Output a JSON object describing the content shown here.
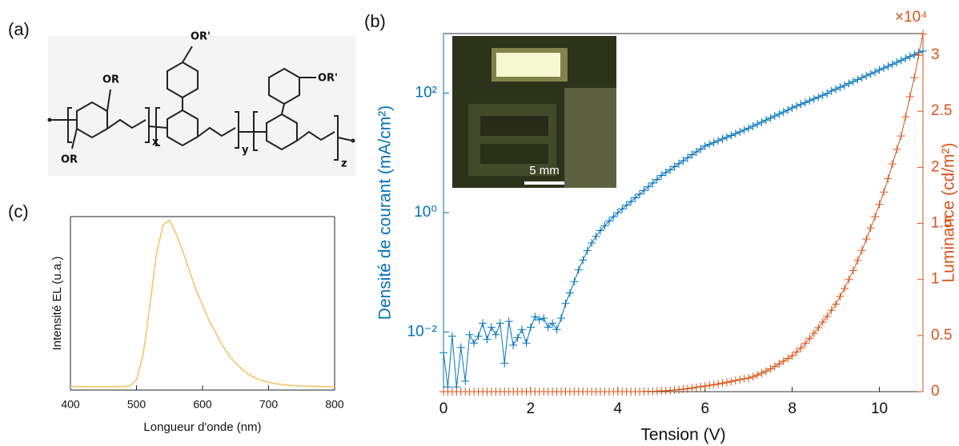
{
  "structure": {
    "label": "(a)",
    "groups": [
      "OR",
      "OR",
      "OR'",
      "OR'"
    ],
    "subscripts": [
      "x",
      "y",
      "z"
    ]
  },
  "chart_data": [
    {
      "type": "line",
      "title": "(b)",
      "xlabel": "Tension (V)",
      "ylabel": "Densité de courant (mA/cm²)",
      "y2label": "Luminance (cd/m²)",
      "y2_multiplier": "×10⁴",
      "annotation": "5 mm",
      "x": [
        0,
        0.1,
        0.2,
        0.3,
        0.4,
        0.5,
        0.6,
        0.7,
        0.8,
        0.9,
        1,
        1.1,
        1.2,
        1.3,
        1.4,
        1.5,
        1.6,
        1.7,
        1.8,
        1.9,
        2,
        2.1,
        2.2,
        2.3,
        2.4,
        2.5,
        2.6,
        2.7,
        2.8,
        2.9,
        3,
        3.1,
        3.2,
        3.3,
        3.4,
        3.5,
        3.6,
        3.7,
        3.8,
        3.9,
        4,
        4.1,
        4.2,
        4.3,
        4.4,
        4.5,
        4.6,
        4.7,
        4.8,
        4.9,
        5,
        5.1,
        5.2,
        5.3,
        5.4,
        5.5,
        5.6,
        5.7,
        5.8,
        5.9,
        6,
        6.1,
        6.2,
        6.3,
        6.4,
        6.5,
        6.6,
        6.7,
        6.8,
        6.9,
        7,
        7.1,
        7.2,
        7.3,
        7.4,
        7.5,
        7.6,
        7.7,
        7.8,
        7.9,
        8,
        8.1,
        8.2,
        8.3,
        8.4,
        8.5,
        8.6,
        8.7,
        8.8,
        8.9,
        9,
        9.1,
        9.2,
        9.3,
        9.4,
        9.5,
        9.6,
        9.7,
        9.8,
        9.9,
        10,
        10.1,
        10.2,
        10.3,
        10.4,
        10.5,
        10.6,
        10.7,
        10.8,
        10.9,
        11
      ],
      "xlim": [
        0,
        11
      ],
      "xticks": [
        0,
        2,
        4,
        6,
        8,
        10
      ],
      "yscale": "log",
      "ylim": [
        0.001,
        1000
      ],
      "yticks": [
        {
          "value": 0.01,
          "label": "10⁻²"
        },
        {
          "value": 1,
          "label": "10⁰"
        },
        {
          "value": 100,
          "label": "10²"
        }
      ],
      "y2lim": [
        0,
        31930
      ],
      "y2ticks": [
        0,
        {
          "value": 5000,
          "label": "0.5"
        },
        {
          "value": 10000,
          "label": "1"
        },
        {
          "value": 15000,
          "label": "1.5"
        },
        {
          "value": 20000,
          "label": "2"
        },
        {
          "value": 25000,
          "label": "2.5"
        },
        {
          "value": 30000,
          "label": "3"
        }
      ],
      "series": [
        {
          "color": "#0072bd",
          "axis": "y",
          "values": [
            0.0045,
            0.0012,
            0.0085,
            0.0012,
            0.0055,
            0.0015,
            0.009,
            0.0065,
            0.0085,
            0.014,
            0.0075,
            0.012,
            0.009,
            0.014,
            0.003,
            0.015,
            0.006,
            0.008,
            0.011,
            0.0065,
            0.012,
            0.018,
            0.016,
            0.017,
            0.012,
            0.014,
            0.011,
            0.017,
            0.03,
            0.045,
            0.07,
            0.11,
            0.16,
            0.23,
            0.31,
            0.4,
            0.5,
            0.6,
            0.72,
            0.85,
            1.0,
            1.15,
            1.33,
            1.53,
            1.77,
            2.04,
            2.35,
            2.71,
            3.13,
            3.6,
            4.2,
            4.7,
            5.2,
            5.9,
            6.6,
            7.4,
            8.3,
            9.3,
            10.4,
            11.6,
            13,
            13.9,
            14.9,
            16,
            17.1,
            18.3,
            19.6,
            21,
            22.5,
            24.2,
            26,
            28.1,
            30.4,
            32.8,
            35.5,
            38.4,
            41.5,
            44.8,
            48.5,
            52.4,
            57,
            61,
            65.4,
            70,
            75,
            80.5,
            86,
            92.5,
            99,
            109,
            117,
            126,
            135,
            146,
            157,
            169,
            182,
            196,
            211,
            227,
            245,
            264,
            284,
            306,
            330,
            355,
            383,
            412,
            444,
            478,
            510
          ]
        },
        {
          "color": "#d95319",
          "axis": "y2",
          "values": [
            0,
            0,
            0,
            0,
            0,
            0,
            0,
            0,
            0,
            0,
            0,
            0,
            0,
            0,
            0,
            0,
            0,
            0,
            0,
            0,
            0,
            0,
            0,
            0,
            0,
            0,
            0,
            0,
            0,
            0,
            0,
            0,
            0,
            0,
            0,
            0,
            0,
            0,
            0,
            0,
            0,
            0,
            0,
            0,
            0,
            0,
            10,
            20,
            30,
            45,
            60,
            80,
            110,
            140,
            180,
            220,
            270,
            320,
            380,
            440,
            500,
            560,
            620,
            690,
            760,
            830,
            910,
            990,
            1070,
            1140,
            1200,
            1330,
            1480,
            1650,
            1830,
            2030,
            2250,
            2480,
            2720,
            2960,
            3200,
            3550,
            3900,
            4300,
            4750,
            5200,
            5700,
            6200,
            6700,
            7250,
            7800,
            8500,
            9200,
            10000,
            10800,
            11700,
            12600,
            13600,
            14600,
            15600,
            16700,
            17800,
            19000,
            20300,
            21600,
            22800,
            24500,
            26300,
            28000,
            30000,
            31900
          ]
        }
      ]
    },
    {
      "type": "line",
      "title": "(c)",
      "xlabel": "Longueur d'onde (nm)",
      "ylabel": "Intensité EL (u.a.)",
      "x": [
        400,
        410,
        420,
        430,
        440,
        450,
        460,
        470,
        480,
        490,
        500,
        510,
        520,
        530,
        540,
        550,
        560,
        570,
        580,
        590,
        600,
        610,
        620,
        630,
        640,
        650,
        660,
        670,
        680,
        690,
        700,
        710,
        720,
        730,
        740,
        750,
        760,
        770,
        780,
        790,
        800
      ],
      "xlim": [
        400,
        800
      ],
      "xticks": [
        400,
        500,
        600,
        700,
        800
      ],
      "ylim": [
        0,
        1
      ],
      "series": [
        {
          "color": "#f7c46a",
          "values": [
            0.02,
            0.02,
            0.02,
            0.02,
            0.02,
            0.02,
            0.02,
            0.02,
            0.02,
            0.025,
            0.06,
            0.2,
            0.48,
            0.78,
            0.95,
            0.98,
            0.9,
            0.8,
            0.69,
            0.58,
            0.49,
            0.4,
            0.33,
            0.26,
            0.2,
            0.155,
            0.12,
            0.09,
            0.07,
            0.055,
            0.045,
            0.037,
            0.032,
            0.028,
            0.025,
            0.023,
            0.022,
            0.021,
            0.02,
            0.02,
            0.02
          ]
        }
      ]
    }
  ]
}
